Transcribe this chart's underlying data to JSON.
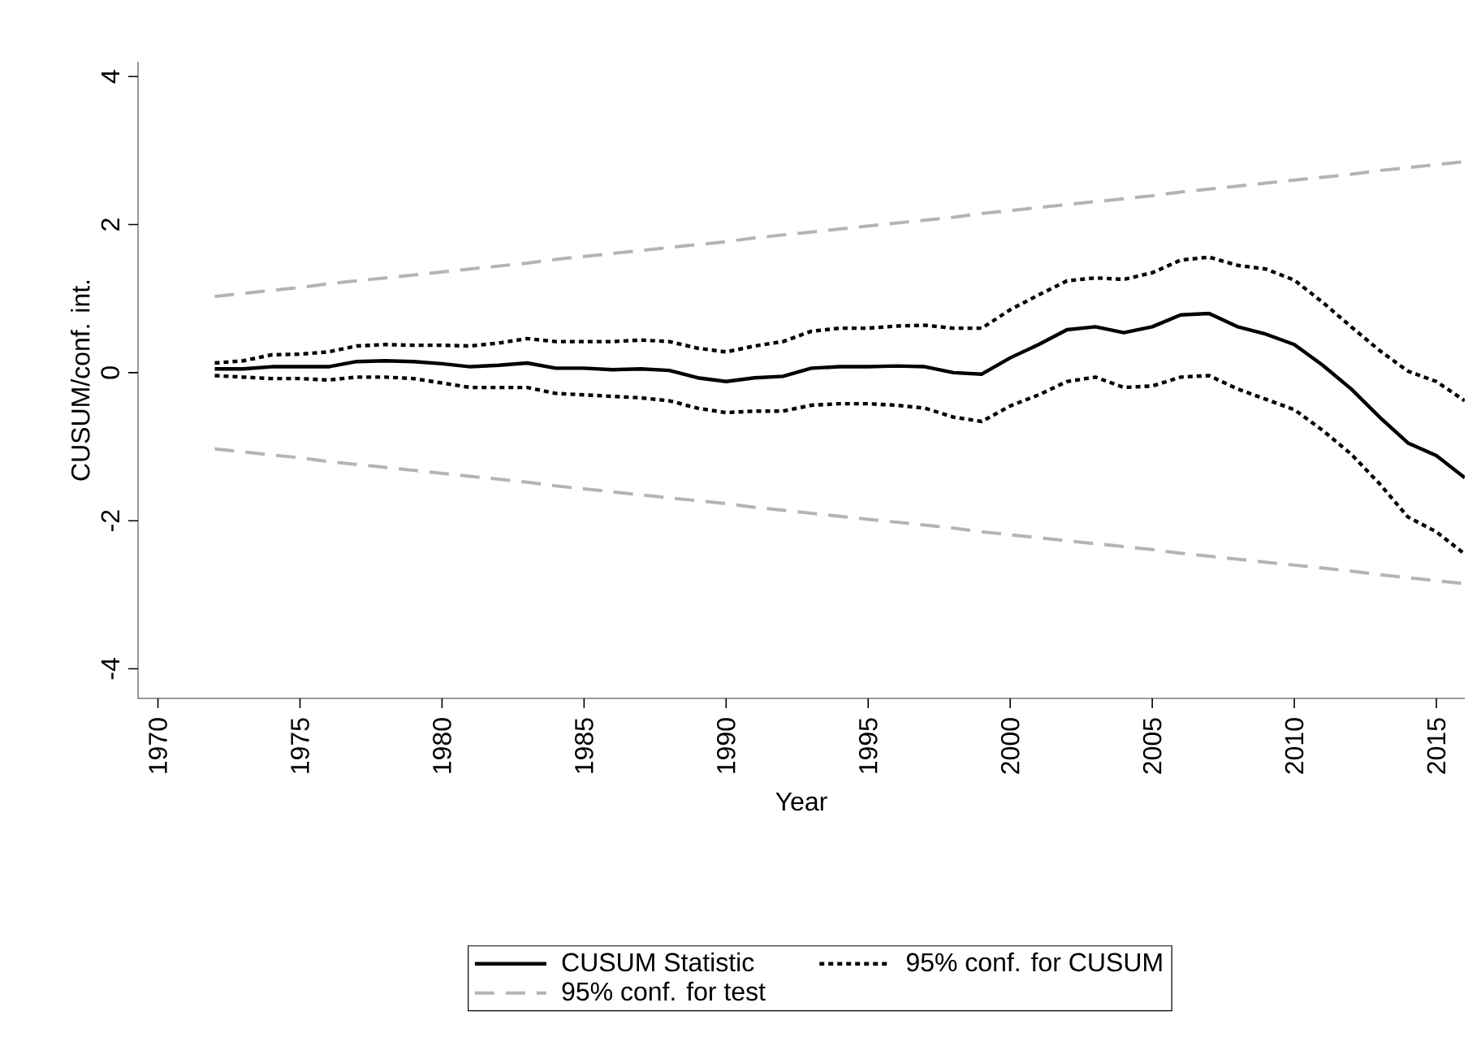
{
  "chart_data": {
    "type": "line",
    "xlabel": "Year",
    "ylabel": "CUSUM/conf. int.",
    "x": [
      1972,
      1973,
      1974,
      1975,
      1976,
      1977,
      1978,
      1979,
      1980,
      1981,
      1982,
      1983,
      1984,
      1985,
      1986,
      1987,
      1988,
      1989,
      1990,
      1991,
      1992,
      1993,
      1994,
      1995,
      1996,
      1997,
      1998,
      1999,
      2000,
      2001,
      2002,
      2003,
      2004,
      2005,
      2006,
      2007,
      2008,
      2009,
      2010,
      2011,
      2012,
      2013,
      2014,
      2015,
      2016
    ],
    "series": [
      {
        "name": "CUSUM Statistic",
        "color": "#000000",
        "line_style": "solid",
        "values": [
          0.05,
          0.05,
          0.08,
          0.08,
          0.08,
          0.15,
          0.16,
          0.15,
          0.12,
          0.08,
          0.1,
          0.13,
          0.06,
          0.06,
          0.04,
          0.05,
          0.03,
          -0.07,
          -0.12,
          -0.07,
          -0.05,
          0.06,
          0.08,
          0.08,
          0.09,
          0.08,
          0.0,
          -0.02,
          0.2,
          0.38,
          0.58,
          0.62,
          0.54,
          0.62,
          0.78,
          0.8,
          0.62,
          0.52,
          0.38,
          0.1,
          -0.22,
          -0.6,
          -0.95,
          -1.12,
          -1.42
        ]
      },
      {
        "name": "95% conf. for CUSUM",
        "color": "#000000",
        "line_style": "dotted",
        "values": [
          0.13,
          0.16,
          0.24,
          0.25,
          0.28,
          0.36,
          0.38,
          0.37,
          0.37,
          0.36,
          0.4,
          0.46,
          0.42,
          0.42,
          0.42,
          0.44,
          0.42,
          0.33,
          0.28,
          0.36,
          0.42,
          0.56,
          0.6,
          0.6,
          0.63,
          0.64,
          0.6,
          0.6,
          0.85,
          1.05,
          1.24,
          1.28,
          1.26,
          1.35,
          1.52,
          1.56,
          1.45,
          1.4,
          1.25,
          0.95,
          0.62,
          0.3,
          0.02,
          -0.12,
          -0.38
        ]
      },
      {
        "color": "#000000",
        "line_style": "dotted",
        "values": [
          -0.04,
          -0.06,
          -0.08,
          -0.08,
          -0.1,
          -0.06,
          -0.06,
          -0.08,
          -0.14,
          -0.2,
          -0.2,
          -0.2,
          -0.28,
          -0.3,
          -0.32,
          -0.34,
          -0.38,
          -0.48,
          -0.54,
          -0.52,
          -0.52,
          -0.44,
          -0.42,
          -0.42,
          -0.44,
          -0.48,
          -0.6,
          -0.66,
          -0.45,
          -0.3,
          -0.12,
          -0.06,
          -0.2,
          -0.18,
          -0.06,
          -0.04,
          -0.22,
          -0.36,
          -0.5,
          -0.78,
          -1.1,
          -1.5,
          -1.95,
          -2.15,
          -2.45
        ]
      },
      {
        "name": "95% conf. for test",
        "color": "#b4b4b4",
        "line_style": "dashed",
        "values": [
          1.03,
          1.07,
          1.11,
          1.15,
          1.2,
          1.24,
          1.28,
          1.32,
          1.36,
          1.4,
          1.44,
          1.48,
          1.53,
          1.57,
          1.61,
          1.65,
          1.69,
          1.73,
          1.77,
          1.82,
          1.86,
          1.9,
          1.94,
          1.98,
          2.02,
          2.06,
          2.1,
          2.15,
          2.19,
          2.23,
          2.27,
          2.31,
          2.35,
          2.39,
          2.44,
          2.48,
          2.52,
          2.56,
          2.6,
          2.64,
          2.68,
          2.73,
          2.77,
          2.81,
          2.85
        ]
      },
      {
        "color": "#b4b4b4",
        "line_style": "dashed",
        "values": [
          -1.03,
          -1.07,
          -1.11,
          -1.15,
          -1.2,
          -1.24,
          -1.28,
          -1.32,
          -1.36,
          -1.4,
          -1.44,
          -1.48,
          -1.53,
          -1.57,
          -1.61,
          -1.65,
          -1.69,
          -1.73,
          -1.77,
          -1.82,
          -1.86,
          -1.9,
          -1.94,
          -1.98,
          -2.02,
          -2.06,
          -2.1,
          -2.15,
          -2.19,
          -2.23,
          -2.27,
          -2.31,
          -2.35,
          -2.39,
          -2.44,
          -2.48,
          -2.52,
          -2.56,
          -2.6,
          -2.64,
          -2.68,
          -2.73,
          -2.77,
          -2.81,
          -2.85
        ]
      }
    ],
    "xlim": [
      1969.3,
      2016
    ],
    "ylim": [
      -4.4,
      4.2
    ],
    "xticks": [
      1970,
      1975,
      1980,
      1985,
      1990,
      1995,
      2000,
      2005,
      2010,
      2015
    ],
    "yticks": [
      -4,
      -2,
      0,
      2,
      4
    ],
    "legend": "bottom",
    "marker": "none"
  }
}
